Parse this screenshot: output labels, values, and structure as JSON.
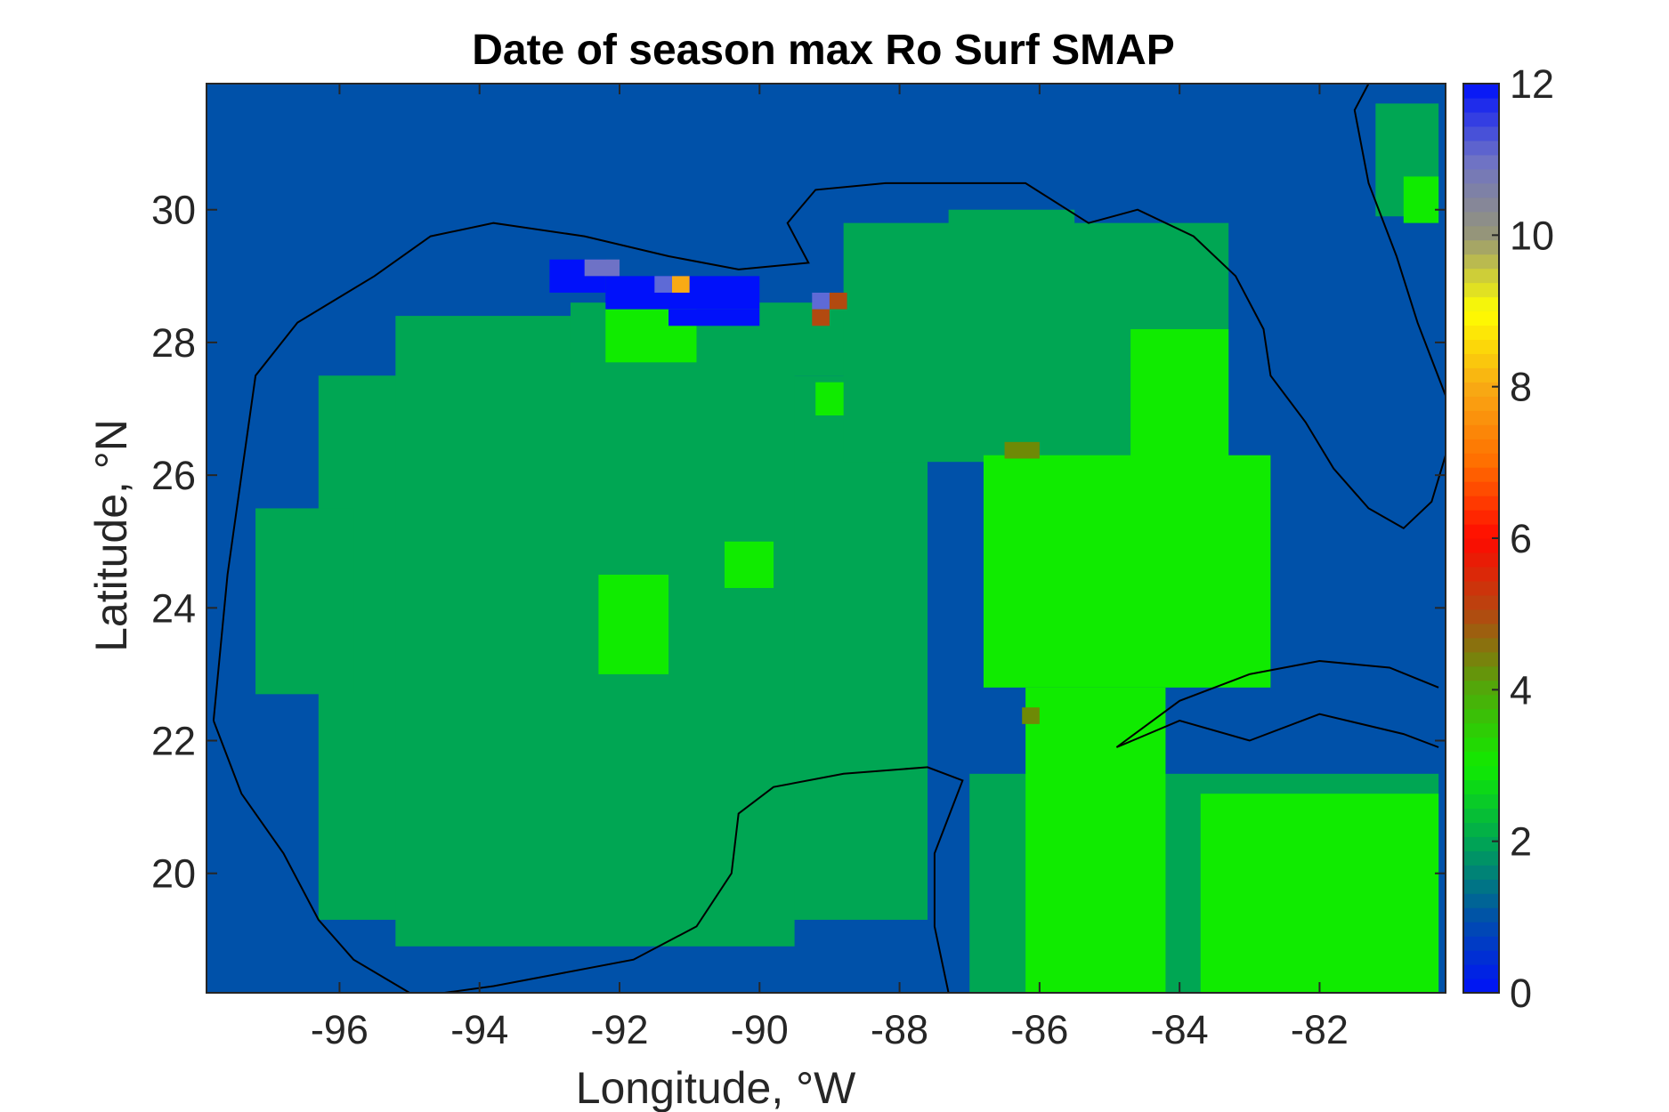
{
  "chart_data": {
    "type": "heatmap",
    "title": "Date of season max Ro Surf SMAP",
    "xlabel": "Longitude, °W",
    "ylabel": "Latitude, °N",
    "xlim": [
      -97.9,
      -80.2
    ],
    "ylim": [
      18.2,
      31.9
    ],
    "xticks": [
      -96,
      -94,
      -92,
      -90,
      -88,
      -86,
      -84,
      -82
    ],
    "xtick_labels": [
      "-96",
      "-94",
      "-92",
      "-90",
      "-88",
      "-86",
      "-84",
      "-82"
    ],
    "yticks": [
      20,
      22,
      24,
      26,
      28,
      30
    ],
    "ytick_labels": [
      "20",
      "22",
      "24",
      "26",
      "28",
      "30"
    ],
    "colorbar": {
      "range": [
        0,
        12
      ],
      "ticks": [
        0,
        2,
        4,
        6,
        8,
        10,
        12
      ],
      "tick_labels": [
        "0",
        "2",
        "4",
        "6",
        "8",
        "10",
        "12"
      ],
      "colormap": "jet-like (blue-green-yellow-red-gray-blue)"
    },
    "background_value": 1,
    "value_colors": {
      "1": "#0051A9",
      "2": "#00A653",
      "3": "#10EB00",
      "4.5": "#6E8A06",
      "5.5": "#B24A10",
      "8.3": "#F8AA14",
      "11": "#6E72C6",
      "11.5": "#5E6AD6",
      "12": "#0011FA"
    },
    "regions": [
      {
        "value": 2,
        "lon": [
          -96.3,
          -87.6
        ],
        "lat": [
          19.3,
          27.5
        ]
      },
      {
        "value": 2,
        "lon": [
          -95.2,
          -89.5
        ],
        "lat": [
          18.9,
          28.4
        ]
      },
      {
        "value": 2,
        "lon": [
          -92.7,
          -88.2
        ],
        "lat": [
          27.5,
          28.6
        ]
      },
      {
        "value": 2,
        "lon": [
          -88.8,
          -83.3
        ],
        "lat": [
          26.2,
          29.8
        ]
      },
      {
        "value": 2,
        "lon": [
          -87.3,
          -85.5
        ],
        "lat": [
          29.3,
          30.0
        ]
      },
      {
        "value": 2,
        "lon": [
          -97.2,
          -95.8
        ],
        "lat": [
          22.7,
          25.5
        ]
      },
      {
        "value": 2,
        "lon": [
          -87.0,
          -80.3
        ],
        "lat": [
          18.2,
          21.5
        ]
      },
      {
        "value": 2,
        "lon": [
          -81.2,
          -80.3
        ],
        "lat": [
          29.9,
          31.6
        ]
      },
      {
        "value": 3,
        "lon": [
          -86.8,
          -82.7
        ],
        "lat": [
          22.8,
          26.3
        ]
      },
      {
        "value": 3,
        "lon": [
          -86.2,
          -84.2
        ],
        "lat": [
          18.2,
          22.8
        ]
      },
      {
        "value": 3,
        "lon": [
          -84.7,
          -83.3
        ],
        "lat": [
          25.5,
          28.2
        ]
      },
      {
        "value": 3,
        "lon": [
          -83.7,
          -80.3
        ],
        "lat": [
          18.2,
          21.2
        ]
      },
      {
        "value": 3,
        "lon": [
          -92.2,
          -90.9
        ],
        "lat": [
          27.7,
          28.6
        ]
      },
      {
        "value": 3,
        "lon": [
          -89.2,
          -88.8
        ],
        "lat": [
          26.9,
          27.4
        ]
      },
      {
        "value": 3,
        "lon": [
          -92.3,
          -91.3
        ],
        "lat": [
          23.0,
          24.5
        ]
      },
      {
        "value": 3,
        "lon": [
          -90.5,
          -89.8
        ],
        "lat": [
          24.3,
          25.0
        ]
      },
      {
        "value": 3,
        "lon": [
          -80.8,
          -80.3
        ],
        "lat": [
          29.8,
          30.5
        ]
      },
      {
        "value": 12,
        "lon": [
          -93.0,
          -92.2
        ],
        "lat": [
          28.75,
          29.25
        ]
      },
      {
        "value": 12,
        "lon": [
          -92.2,
          -90.0
        ],
        "lat": [
          28.5,
          29.0
        ]
      },
      {
        "value": 12,
        "lon": [
          -91.3,
          -90.0
        ],
        "lat": [
          28.25,
          28.5
        ]
      },
      {
        "value": 11,
        "lon": [
          -92.5,
          -92.0
        ],
        "lat": [
          29.0,
          29.25
        ]
      },
      {
        "value": 11.5,
        "lon": [
          -91.5,
          -91.25
        ],
        "lat": [
          28.75,
          29.0
        ]
      },
      {
        "value": 8.3,
        "lon": [
          -91.25,
          -91.0
        ],
        "lat": [
          28.75,
          29.0
        ]
      },
      {
        "value": 11.5,
        "lon": [
          -89.25,
          -89.0
        ],
        "lat": [
          28.5,
          28.75
        ]
      },
      {
        "value": 5.5,
        "lon": [
          -89.0,
          -88.75
        ],
        "lat": [
          28.5,
          28.75
        ]
      },
      {
        "value": 5.5,
        "lon": [
          -89.25,
          -89.0
        ],
        "lat": [
          28.25,
          28.5
        ]
      },
      {
        "value": 4.5,
        "lon": [
          -86.5,
          -86.0
        ],
        "lat": [
          26.25,
          26.5
        ]
      },
      {
        "value": 4.5,
        "lon": [
          -86.25,
          -86.0
        ],
        "lat": [
          22.25,
          22.5
        ]
      }
    ]
  }
}
